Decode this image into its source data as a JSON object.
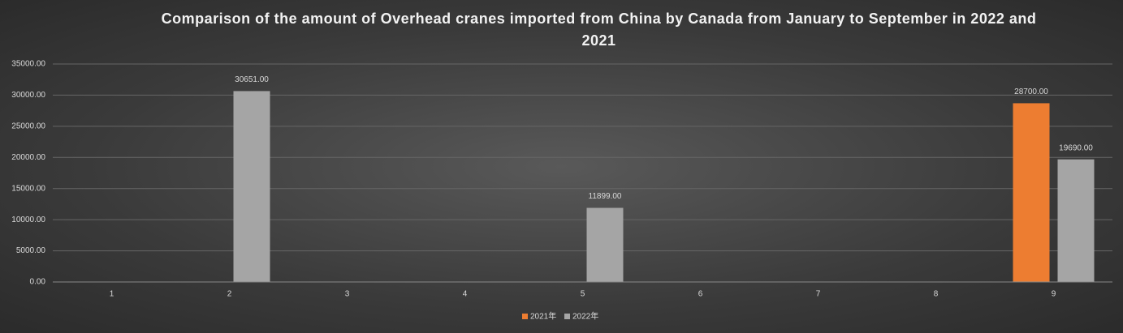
{
  "chart_data": {
    "type": "bar",
    "title": "Comparison of the amount of Overhead cranes imported from China by Canada from January to September in 2022 and 2021",
    "categories": [
      "1",
      "2",
      "3",
      "4",
      "5",
      "6",
      "7",
      "8",
      "9"
    ],
    "series": [
      {
        "name": "2021年",
        "color": "#ed7d31",
        "values": [
          null,
          null,
          null,
          null,
          null,
          null,
          null,
          null,
          28700
        ],
        "value_labels": [
          null,
          null,
          null,
          null,
          null,
          null,
          null,
          null,
          "28700.00"
        ]
      },
      {
        "name": "2022年",
        "color": "#a5a5a5",
        "values": [
          null,
          30651,
          null,
          null,
          11899,
          null,
          null,
          null,
          19690
        ],
        "value_labels": [
          null,
          "30651.00",
          null,
          null,
          "11899.00",
          null,
          null,
          null,
          "19690.00"
        ]
      }
    ],
    "ylim": [
      0,
      35000
    ],
    "yticks": [
      {
        "value": 0,
        "label": "0.00"
      },
      {
        "value": 5000,
        "label": "5000.00"
      },
      {
        "value": 10000,
        "label": "10000.00"
      },
      {
        "value": 15000,
        "label": "15000.00"
      },
      {
        "value": 20000,
        "label": "20000.00"
      },
      {
        "value": 25000,
        "label": "25000.00"
      },
      {
        "value": 30000,
        "label": "30000.00"
      },
      {
        "value": 35000,
        "label": "35000.00"
      }
    ],
    "grid": true,
    "legend": "bottom"
  }
}
